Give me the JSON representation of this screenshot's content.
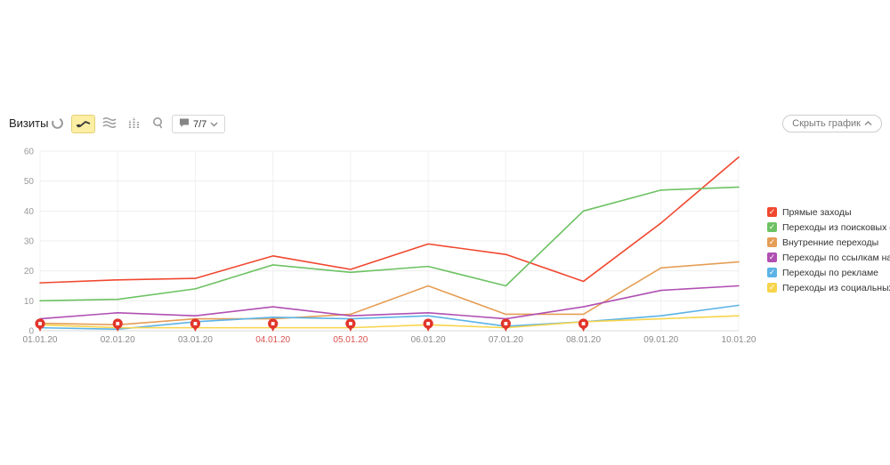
{
  "toolbar": {
    "title": "Визиты",
    "chart_type_icons": [
      {
        "name": "donut-chart-icon",
        "selected": false
      },
      {
        "name": "line-chart-icon",
        "selected": true
      },
      {
        "name": "stacked-area-icon",
        "selected": false
      },
      {
        "name": "bar-chart-icon",
        "selected": false
      },
      {
        "name": "map-pin-icon",
        "selected": false
      }
    ],
    "segments_dropdown": {
      "label": "7/7",
      "icon": "speech-bubble-icon",
      "chevron": "chevron-down-icon"
    },
    "hide_button": {
      "label": "Скрыть график",
      "chevron": "chevron-up-icon"
    }
  },
  "chart_data": {
    "type": "line",
    "title": "Визиты",
    "categories": [
      "01.01.20",
      "02.01.20",
      "03.01.20",
      "04.01.20",
      "05.01.20",
      "06.01.20",
      "07.01.20",
      "08.01.20",
      "09.01.20",
      "10.01.20"
    ],
    "weekend_categories": [
      "04.01.20",
      "05.01.20"
    ],
    "holiday_marker_categories": [
      "01.01.20",
      "02.01.20",
      "03.01.20",
      "04.01.20",
      "05.01.20",
      "06.01.20",
      "07.01.20",
      "08.01.20"
    ],
    "holiday_marker_color": "#e1352b",
    "ylim": [
      0,
      60
    ],
    "yticks": [
      0,
      10,
      20,
      30,
      40,
      50,
      60
    ],
    "grid": true,
    "legend_position": "right",
    "series": [
      {
        "name": "Прямые заходы",
        "color": "#f0482f",
        "values": [
          16,
          17,
          17.5,
          25,
          20.5,
          29,
          25.5,
          16.5,
          36,
          58
        ]
      },
      {
        "name": "Переходы из поисковых систем",
        "color": "#6dc263",
        "values": [
          10,
          10.5,
          14,
          22,
          19.5,
          21.5,
          15,
          40,
          47,
          48
        ]
      },
      {
        "name": "Внутренние переходы",
        "color": "#e59e56",
        "values": [
          2.5,
          2,
          4,
          4,
          5.5,
          15,
          5.5,
          5.5,
          21,
          23
        ]
      },
      {
        "name": "Переходы по ссылкам на сайтах",
        "color": "#b04fb2",
        "values": [
          4,
          6,
          5,
          8,
          5,
          6,
          4,
          8,
          13.5,
          15
        ]
      },
      {
        "name": "Переходы по рекламе",
        "color": "#5cb3e6",
        "values": [
          1,
          0.5,
          3,
          4.5,
          4,
          5,
          1.5,
          3,
          5,
          8.5
        ]
      },
      {
        "name": "Переходы из социальных сетей",
        "color": "#f8d44c",
        "values": [
          2,
          1,
          1,
          1,
          1,
          2,
          1,
          3,
          4,
          5
        ]
      }
    ]
  },
  "legend": {
    "checkmark": "✓"
  }
}
